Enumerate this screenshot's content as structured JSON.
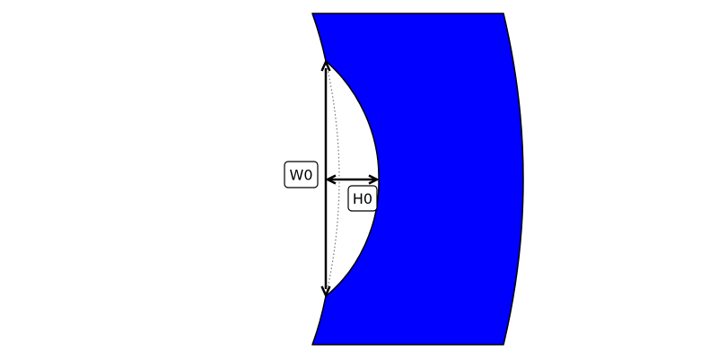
{
  "colors": {
    "background": "#ffffff",
    "band_fill": "#0000ff",
    "outline": "#000000",
    "dotted_guide": "#777777",
    "label_box_fill": "#ffffff"
  },
  "labels": {
    "width": "W0",
    "height": "H0"
  }
}
